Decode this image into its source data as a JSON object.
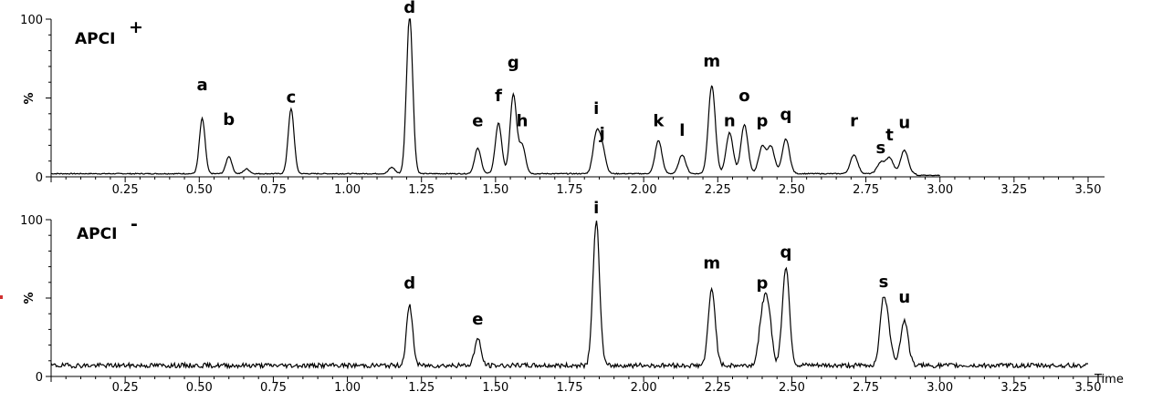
{
  "chart_data": [
    {
      "type": "line",
      "title": "APCI",
      "title_superscript": "+",
      "ylabel": "%",
      "xlabel": "",
      "xlim": [
        0.0,
        3.5
      ],
      "ylim": [
        0,
        100
      ],
      "y_ticks": [
        "0",
        "100"
      ],
      "x_ticks": [
        "0.25",
        "0.50",
        "0.75",
        "1.00",
        "1.25",
        "1.50",
        "1.75",
        "2.00",
        "2.25",
        "2.50",
        "2.75",
        "3.00",
        "3.25",
        "3.50"
      ],
      "baseline": 2,
      "noise": 0.3,
      "peaks": [
        {
          "label": "a",
          "rt": 0.51,
          "height": 35,
          "label_y": 55
        },
        {
          "label": "b",
          "rt": 0.6,
          "height": 11,
          "label_y": 33
        },
        {
          "label": "",
          "rt": 0.66,
          "height": 3,
          "label_y": null
        },
        {
          "label": "c",
          "rt": 0.81,
          "height": 41,
          "label_y": 47
        },
        {
          "label": "",
          "rt": 1.15,
          "height": 4,
          "label_y": null
        },
        {
          "label": "d",
          "rt": 1.21,
          "height": 100,
          "label_y": 104
        },
        {
          "label": "e",
          "rt": 1.44,
          "height": 16,
          "label_y": 32
        },
        {
          "label": "f",
          "rt": 1.51,
          "height": 32,
          "label_y": 48
        },
        {
          "label": "g",
          "rt": 1.56,
          "height": 50,
          "label_y": 69
        },
        {
          "label": "h",
          "rt": 1.59,
          "height": 18,
          "label_y": 32
        },
        {
          "label": "i",
          "rt": 1.84,
          "height": 24,
          "label_y": 40
        },
        {
          "label": "j",
          "rt": 1.86,
          "height": 16,
          "label_y": 24
        },
        {
          "label": "k",
          "rt": 2.05,
          "height": 21,
          "label_y": 32
        },
        {
          "label": "l",
          "rt": 2.13,
          "height": 12,
          "label_y": 26
        },
        {
          "label": "m",
          "rt": 2.23,
          "height": 56,
          "label_y": 70
        },
        {
          "label": "n",
          "rt": 2.29,
          "height": 26,
          "label_y": 32
        },
        {
          "label": "o",
          "rt": 2.34,
          "height": 31,
          "label_y": 48
        },
        {
          "label": "p",
          "rt": 2.4,
          "height": 17,
          "label_y": 32
        },
        {
          "label": "",
          "rt": 2.43,
          "height": 17,
          "label_y": null
        },
        {
          "label": "q",
          "rt": 2.48,
          "height": 22,
          "label_y": 36
        },
        {
          "label": "r",
          "rt": 2.71,
          "height": 12,
          "label_y": 32
        },
        {
          "label": "s",
          "rt": 2.8,
          "height": 7,
          "label_y": 15
        },
        {
          "label": "t",
          "rt": 2.83,
          "height": 10,
          "label_y": 23
        },
        {
          "label": "u",
          "rt": 2.88,
          "height": 15,
          "label_y": 31
        }
      ]
    },
    {
      "type": "line",
      "title": "APCI",
      "title_superscript": "-",
      "ylabel": "%",
      "xlabel": "Time",
      "xlim": [
        0.0,
        3.5
      ],
      "ylim": [
        0,
        100
      ],
      "y_ticks": [
        "0",
        "100"
      ],
      "x_ticks": [
        "0.25",
        "0.50",
        "0.75",
        "1.00",
        "1.25",
        "1.50",
        "1.75",
        "2.00",
        "2.25",
        "2.50",
        "2.75",
        "3.00",
        "3.25",
        "3.50"
      ],
      "baseline": 7,
      "noise": 1.5,
      "peaks": [
        {
          "label": "d",
          "rt": 1.21,
          "height": 38,
          "label_y": 56
        },
        {
          "label": "e",
          "rt": 1.44,
          "height": 17,
          "label_y": 33
        },
        {
          "label": "i",
          "rt": 1.84,
          "height": 92,
          "label_y": 104
        },
        {
          "label": "m",
          "rt": 2.23,
          "height": 49,
          "label_y": 69
        },
        {
          "label": "p",
          "rt": 2.4,
          "height": 29,
          "label_y": 56
        },
        {
          "label": "",
          "rt": 2.42,
          "height": 35,
          "label_y": null
        },
        {
          "label": "q",
          "rt": 2.48,
          "height": 63,
          "label_y": 76
        },
        {
          "label": "s",
          "rt": 2.81,
          "height": 41,
          "label_y": 57
        },
        {
          "label": "",
          "rt": 2.83,
          "height": 12,
          "label_y": null
        },
        {
          "label": "u",
          "rt": 2.88,
          "height": 29,
          "label_y": 47
        }
      ]
    }
  ],
  "colors": {
    "trace": "#000000",
    "axis": "#000000",
    "marker": "#d03030"
  }
}
